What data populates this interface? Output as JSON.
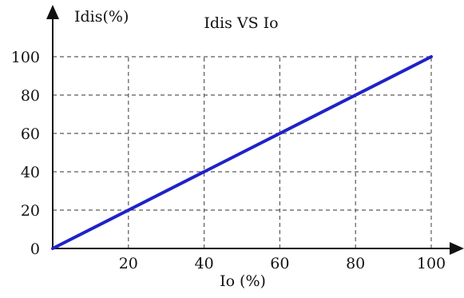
{
  "chart_data": {
    "type": "line",
    "title": "Idis VS Io",
    "xlabel": "Io (%)",
    "ylabel": "Idis(%)",
    "x_ticks": [
      "20",
      "40",
      "60",
      "80",
      "100"
    ],
    "y_ticks": [
      "0",
      "20",
      "40",
      "60",
      "80",
      "100"
    ],
    "xlim": [
      0,
      100
    ],
    "ylim": [
      0,
      100
    ],
    "grid": true,
    "series": [
      {
        "x": [
          0,
          100
        ],
        "y": [
          0,
          100
        ],
        "color": "#1f22c8"
      }
    ]
  }
}
